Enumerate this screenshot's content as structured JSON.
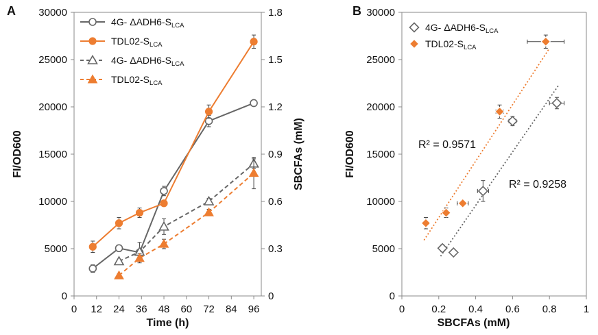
{
  "chart_data": [
    {
      "panel": "A",
      "type": "line",
      "xlabel": "Time (h)",
      "ylabel": "FI/OD600",
      "y2label": "SBCFAs (mM)",
      "xticks": [
        0,
        12,
        24,
        36,
        48,
        60,
        72,
        84,
        96
      ],
      "xlim": [
        0,
        100
      ],
      "ylim": [
        0,
        30000
      ],
      "yticks": [
        0,
        5000,
        10000,
        15000,
        20000,
        25000,
        30000
      ],
      "y2lim": [
        0,
        1.8
      ],
      "y2ticks": [
        "0",
        "0.3",
        "0.6",
        "0.9",
        "1.2",
        "1.5",
        "1.8"
      ],
      "legend_position": "top-left",
      "series": [
        {
          "name": "4G- ΔADH6-S",
          "subscript": "LCA",
          "axis": "left",
          "color": "#666666",
          "dash": "solid",
          "marker": "circle-open",
          "x": [
            10,
            24,
            35,
            48,
            72,
            96
          ],
          "y": [
            2900,
            5050,
            4600,
            11100,
            18500,
            20400
          ],
          "err": [
            400,
            350,
            250,
            500,
            600,
            300
          ]
        },
        {
          "name": "TDL02-S",
          "subscript": "LCA",
          "axis": "left",
          "color": "#ED7D31",
          "dash": "solid",
          "marker": "circle-filled",
          "x": [
            10,
            24,
            35,
            48,
            72,
            96
          ],
          "y": [
            5200,
            7700,
            8800,
            9800,
            19500,
            26900
          ],
          "err": [
            600,
            600,
            500,
            200,
            700,
            700
          ]
        },
        {
          "name": "4G- ΔADH6-S",
          "subscript": "LCA",
          "axis": "right",
          "color": "#666666",
          "dash": "dashed",
          "marker": "triangle-open",
          "x": [
            24,
            35,
            48,
            72,
            96
          ],
          "y": [
            0.22,
            0.28,
            0.44,
            0.6,
            0.84
          ],
          "err": [
            0.01,
            0.06,
            0.05,
            0.02,
            0.03
          ]
        },
        {
          "name": "TDL02-S",
          "subscript": "LCA",
          "axis": "right",
          "color": "#ED7D31",
          "dash": "dashed",
          "marker": "triangle-filled",
          "x": [
            24,
            35,
            48,
            72,
            96
          ],
          "y": [
            0.13,
            0.24,
            0.33,
            0.53,
            0.78
          ],
          "err": [
            0.01,
            0.03,
            0.03,
            0.02,
            0.1
          ]
        }
      ]
    },
    {
      "panel": "B",
      "type": "scatter",
      "xlabel": "SBCFAs (mM)",
      "ylabel": "FI/OD600",
      "xlim": [
        0,
        1
      ],
      "xticks": [
        "0",
        "0.2",
        "0.4",
        "0.6",
        "0.8",
        "1"
      ],
      "ylim": [
        0,
        30000
      ],
      "yticks": [
        0,
        5000,
        10000,
        15000,
        20000,
        25000,
        30000
      ],
      "legend_position": "top-left",
      "series": [
        {
          "name": "4G- ΔADH6-S",
          "subscript": "LCA",
          "color": "#666666",
          "marker": "diamond-open",
          "x": [
            0.22,
            0.28,
            0.44,
            0.6,
            0.84
          ],
          "y": [
            5050,
            4600,
            11100,
            18500,
            20400
          ],
          "xerr": [
            0.01,
            0.01,
            0.03,
            0.02,
            0.04
          ],
          "yerr": [
            350,
            200,
            1100,
            500,
            600
          ],
          "trendline": {
            "x": [
              0.21,
              0.85
            ],
            "y": [
              4200,
              22300
            ]
          }
        },
        {
          "name": "TDL02-S",
          "subscript": "LCA",
          "color": "#ED7D31",
          "marker": "diamond-filled",
          "x": [
            0.13,
            0.24,
            0.33,
            0.53,
            0.78
          ],
          "y": [
            7700,
            8800,
            9800,
            19500,
            26900
          ],
          "xerr": [
            0.01,
            0.01,
            0.03,
            0.02,
            0.1
          ],
          "yerr": [
            600,
            500,
            200,
            700,
            700
          ],
          "trendline": {
            "x": [
              0.12,
              0.8
            ],
            "y": [
              5900,
              26200
            ]
          }
        }
      ],
      "annotations": [
        {
          "text": "R² = 0.9571",
          "series": 1
        },
        {
          "text": "R² = 0.9258",
          "series": 0
        }
      ]
    }
  ]
}
